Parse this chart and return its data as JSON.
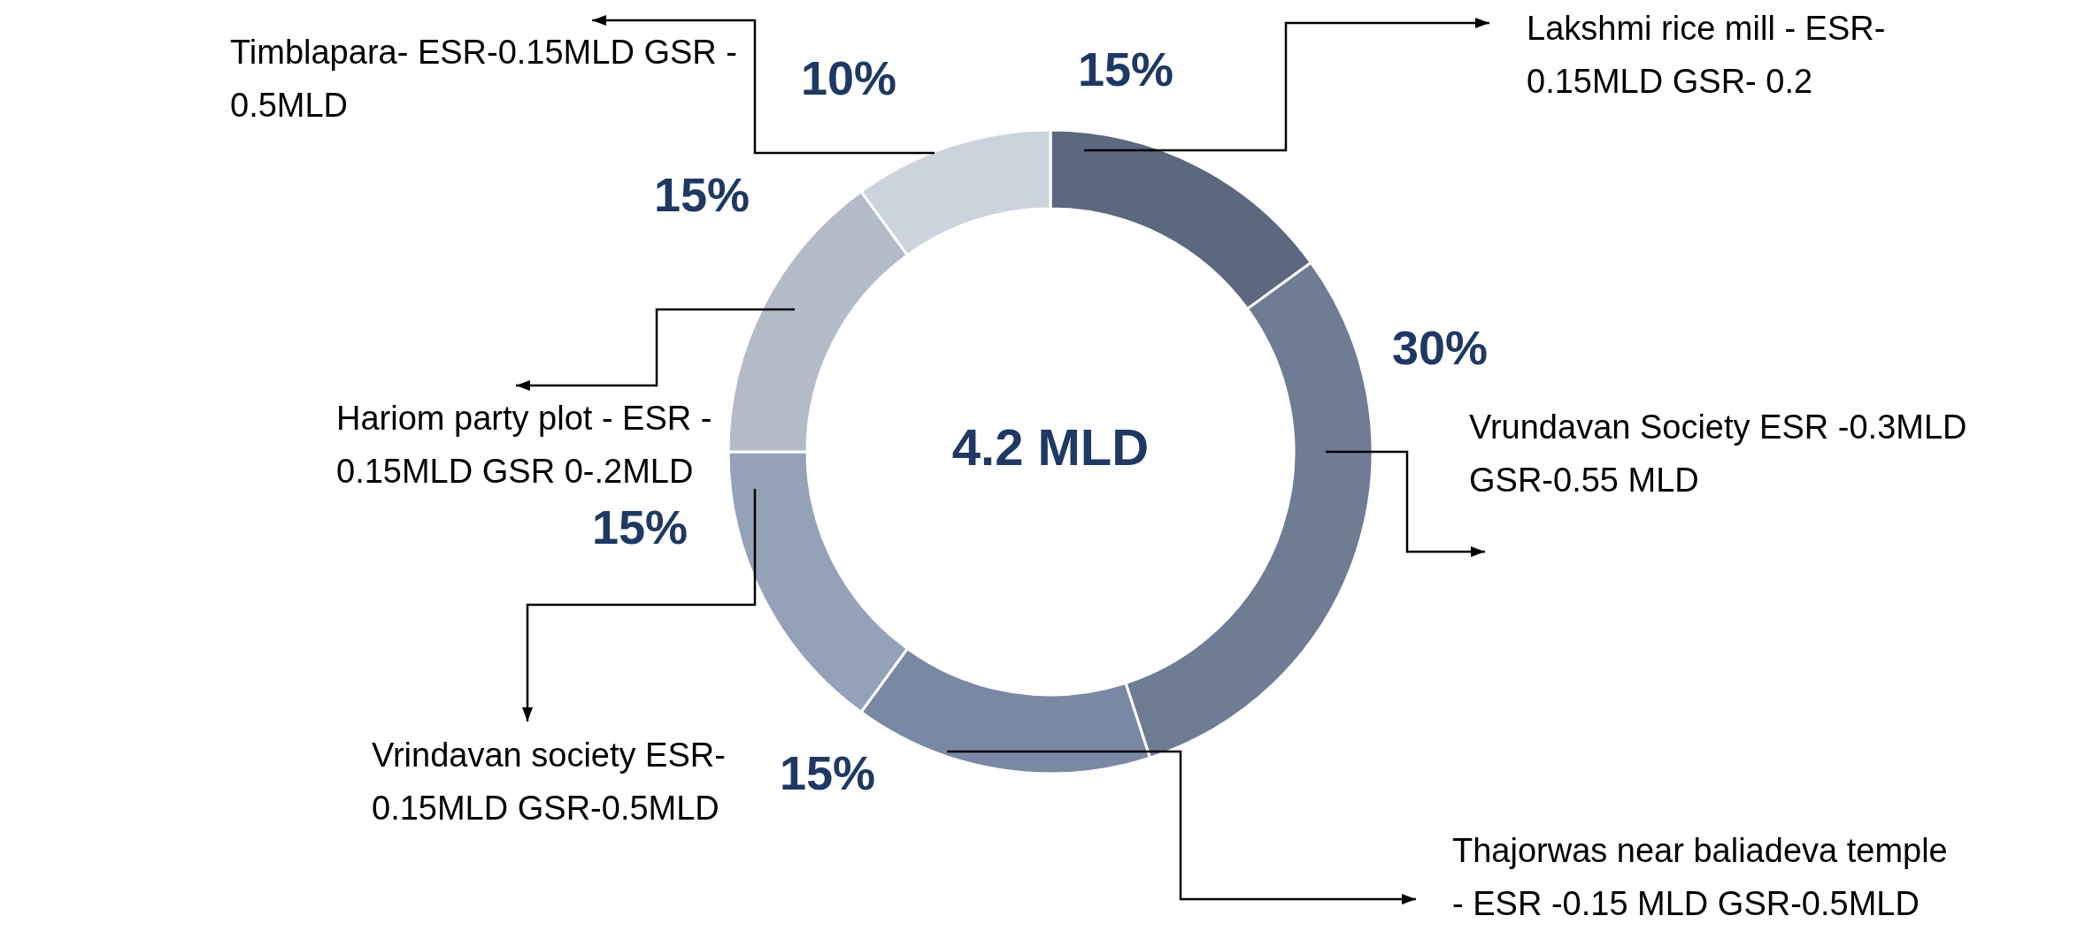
{
  "chart_data": {
    "type": "donut",
    "categories": [
      "Lakshmi rice mill - ESR-\n0.15MLD  GSR- 0.2",
      "Vrundavan Society ESR -0.3MLD\nGSR-0.55 MLD",
      "Thajorwas near baliadeva temple\n- ESR -0.15 MLD GSR-0.5MLD",
      "Vrindavan society  ESR-\n0.15MLD GSR-0.5MLD",
      "Hariom party plot - ESR -\n0.15MLD GSR 0-.2MLD",
      "Timblapara- ESR-0.15MLD GSR -\n0.5MLD"
    ],
    "values": [
      15,
      30,
      15,
      15,
      15,
      10
    ],
    "value_labels": [
      "15%",
      "30%",
      "15%",
      "15%",
      "15%",
      "10%"
    ],
    "colors": [
      "#5b687d",
      "#6e7c94",
      "#7a89a3",
      "#94a2b8",
      "#b3bbc9",
      "#cdd3dd"
    ],
    "annotations": [
      "4.2 MLD"
    ]
  }
}
